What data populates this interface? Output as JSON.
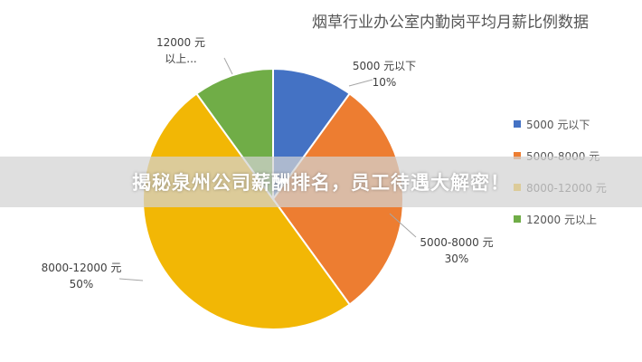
{
  "banner": {
    "text": "揭秘泉州公司薪酬排名，员工待遇大解密！"
  },
  "chart_data": {
    "type": "pie",
    "title": "烟草行业办公室内勤岗平均月薪比例数据",
    "slices": [
      {
        "name": "5000 元以下",
        "value": 10,
        "label_lines": [
          "5000 元以下",
          "10%"
        ],
        "color": "#4472C4"
      },
      {
        "name": "5000-8000 元",
        "value": 30,
        "label_lines": [
          "5000-8000 元",
          "30%"
        ],
        "color": "#ED7D31"
      },
      {
        "name": "8000-12000 元",
        "value": 50,
        "label_lines": [
          "8000-12000 元",
          "50%"
        ],
        "color": "#F2B705"
      },
      {
        "name": "12000 元以上",
        "value": 10,
        "label_lines": [
          "12000 元",
          "以上..."
        ],
        "color": "#70AD47"
      }
    ],
    "legend": [
      "5000 元以下",
      "5000-8000 元",
      "8000-12000 元",
      "12000 元以上"
    ],
    "legend_position": "right"
  }
}
